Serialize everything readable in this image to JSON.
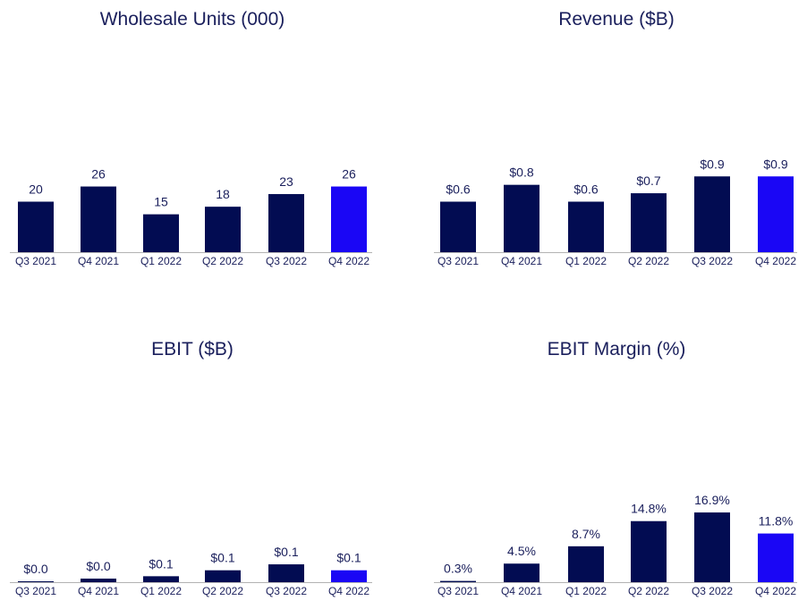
{
  "colors": {
    "bar": "#020c52",
    "highlight": "#1a06f5",
    "text": "#1a1f5c",
    "baseline": "#b3b3b3",
    "divider": "#bdbdbd",
    "divider_glow": "#1a06f5"
  },
  "chart_data": [
    {
      "type": "bar",
      "title": "Wholesale Units (000)",
      "categories": [
        "Q3 2021",
        "Q4 2021",
        "Q1 2022",
        "Q2 2022",
        "Q3 2022",
        "Q4 2022"
      ],
      "values": [
        20,
        26,
        15,
        18,
        23,
        26
      ],
      "labels": [
        "20",
        "26",
        "15",
        "18",
        "23",
        "26"
      ],
      "highlight_index": 5,
      "ylim": [
        0,
        80
      ],
      "grid": false
    },
    {
      "type": "bar",
      "title": "Revenue ($B)",
      "categories": [
        "Q3 2021",
        "Q4 2021",
        "Q1 2022",
        "Q2 2022",
        "Q3 2022",
        "Q4 2022"
      ],
      "values": [
        0.6,
        0.8,
        0.6,
        0.7,
        0.9,
        0.9
      ],
      "labels": [
        "$0.6",
        "$0.8",
        "$0.6",
        "$0.7",
        "$0.9",
        "$0.9"
      ],
      "highlight_index": 5,
      "ylim": [
        0,
        2.4
      ],
      "grid": false
    },
    {
      "type": "bar",
      "title": "EBIT ($B)",
      "categories": [
        "Q3 2021",
        "Q4 2021",
        "Q1 2022",
        "Q2 2022",
        "Q3 2022",
        "Q4 2022"
      ],
      "values": [
        0.0,
        0.03,
        0.05,
        0.1,
        0.15,
        0.1
      ],
      "labels": [
        "$0.0",
        "$0.0",
        "$0.1",
        "$0.1",
        "$0.1",
        "$0.1"
      ],
      "highlight_index": 5,
      "ylim": [
        0,
        1.7
      ],
      "grid": false
    },
    {
      "type": "bar",
      "title": "EBIT Margin (%)",
      "categories": [
        "Q3 2021",
        "Q4 2021",
        "Q1 2022",
        "Q2 2022",
        "Q3 2022",
        "Q4 2022"
      ],
      "values": [
        0.3,
        4.5,
        8.7,
        14.8,
        16.9,
        11.8
      ],
      "labels": [
        "0.3%",
        "4.5%",
        "8.7%",
        "14.8%",
        "16.9%",
        "11.8%"
      ],
      "highlight_index": 5,
      "ylim": [
        0,
        49
      ],
      "grid": false
    }
  ]
}
